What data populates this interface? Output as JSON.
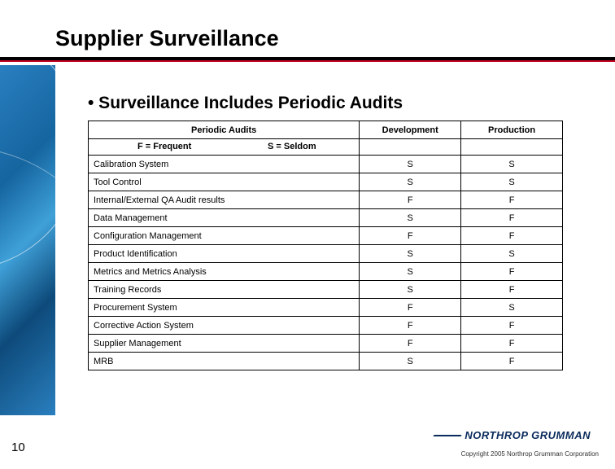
{
  "title": "Supplier Surveillance",
  "bullet": "• Surveillance Includes Periodic Audits",
  "table": {
    "header": {
      "col1": "Periodic Audits",
      "col2": "Development",
      "col3": "Production"
    },
    "legend": {
      "f": "F = Frequent",
      "s": "S = Seldom"
    },
    "rows": [
      {
        "name": "Calibration System",
        "dev": "S",
        "prod": "S"
      },
      {
        "name": "Tool Control",
        "dev": "S",
        "prod": "S"
      },
      {
        "name": "Internal/External QA Audit results",
        "dev": "F",
        "prod": "F"
      },
      {
        "name": "Data Management",
        "dev": "S",
        "prod": "F"
      },
      {
        "name": "Configuration Management",
        "dev": "F",
        "prod": "F"
      },
      {
        "name": "Product Identification",
        "dev": "S",
        "prod": "S"
      },
      {
        "name": "Metrics and Metrics Analysis",
        "dev": "S",
        "prod": "F"
      },
      {
        "name": "Training Records",
        "dev": "S",
        "prod": "F"
      },
      {
        "name": "Procurement System",
        "dev": "F",
        "prod": "S"
      },
      {
        "name": "Corrective Action System",
        "dev": "F",
        "prod": "F"
      },
      {
        "name": "Supplier Management",
        "dev": "F",
        "prod": "F"
      },
      {
        "name": "MRB",
        "dev": "S",
        "prod": "F"
      }
    ]
  },
  "page_number": "10",
  "logo_text": "NORTHROP GRUMMAN",
  "copyright": "Copyright 2005 Northrop Grumman Corporation",
  "colors": {
    "accent_red": "#c00020",
    "logo_navy": "#0a2b5c",
    "sidebar_blue": "#1565a0"
  }
}
